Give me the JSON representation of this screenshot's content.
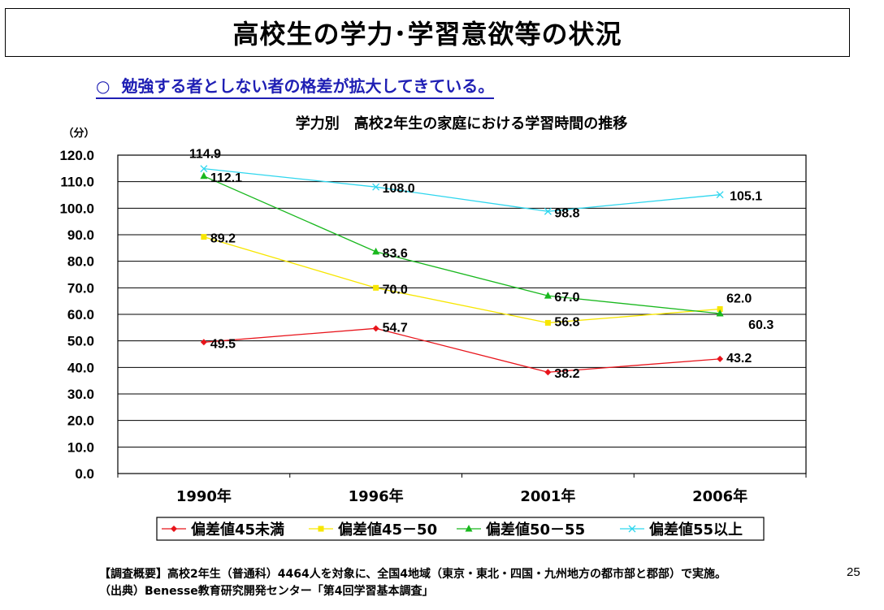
{
  "header": {
    "title": "高校生の学力･学習意欲等の状況",
    "subtitle_bullet": "○",
    "subtitle": "勉強する者としない者の格差が拡大してきている。"
  },
  "chart_data": {
    "type": "line",
    "title": "学力別　高校2年生の家庭における学習時間の推移",
    "unit_label": "（分）",
    "categories": [
      "1990年",
      "1996年",
      "2001年",
      "2006年"
    ],
    "ylim": [
      0,
      120
    ],
    "yticks": [
      "0.0",
      "10.0",
      "20.0",
      "30.0",
      "40.0",
      "50.0",
      "60.0",
      "70.0",
      "80.0",
      "90.0",
      "100.0",
      "110.0",
      "120.0"
    ],
    "grid": true,
    "legend_position": "bottom",
    "series": [
      {
        "name": "偏差値45未満",
        "values": [
          49.5,
          54.7,
          38.2,
          43.2
        ],
        "labels": [
          "49.5",
          "54.7",
          "38.2",
          "43.2"
        ],
        "color": "#e8141b",
        "marker": "diamond"
      },
      {
        "name": "偏差値45－50",
        "values": [
          89.2,
          70.0,
          56.8,
          62.0
        ],
        "labels": [
          "89.2",
          "70.0",
          "56.8",
          "62.0"
        ],
        "color": "#f7e600",
        "marker": "square"
      },
      {
        "name": "偏差値50－55",
        "values": [
          112.1,
          83.6,
          67.0,
          60.3
        ],
        "labels": [
          "112.1",
          "83.6",
          "67.0",
          "60.3"
        ],
        "color": "#19b81e",
        "marker": "triangle"
      },
      {
        "name": "偏差値55以上",
        "values": [
          114.9,
          108.0,
          98.8,
          105.1
        ],
        "labels": [
          "114.9",
          "108.0",
          "98.8",
          "105.1"
        ],
        "color": "#2ed6ee",
        "marker": "x"
      }
    ]
  },
  "footer": {
    "line1": "【調査概要】高校2年生（普通科）4464人を対象に、全国4地域（東京・東北・四国・九州地方の都市部と郡部）で実施。",
    "line2": "（出典）Benesse教育研究開発センター「第4回学習基本調査」",
    "page_number": "25"
  }
}
